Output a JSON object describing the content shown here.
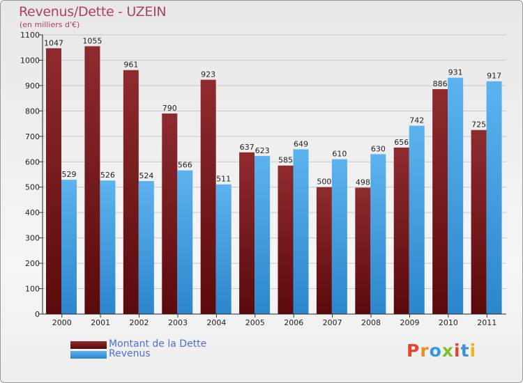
{
  "header": {
    "title": "Revenus/Dette - UZEIN",
    "subtitle": "(en milliers d'€)"
  },
  "legend": {
    "debt_label": "Montant de la Dette",
    "revenue_label": "Revenus"
  },
  "logo": {
    "text": "Proxiti",
    "colors": [
      "#e5462b",
      "#f08c24",
      "#2f9be0",
      "#7fbf2a",
      "#e5462b",
      "#3f8fd9",
      "#f0b41c"
    ]
  },
  "colors": {
    "debt": "#7a1a1e",
    "revenue": "#3a9be0",
    "title": "#b04060"
  },
  "chart_data": {
    "type": "bar",
    "categories": [
      "2000",
      "2001",
      "2002",
      "2003",
      "2004",
      "2005",
      "2006",
      "2007",
      "2008",
      "2009",
      "2010",
      "2011"
    ],
    "series": [
      {
        "name": "Montant de la Dette",
        "values": [
          1047,
          1055,
          961,
          790,
          923,
          637,
          585,
          500,
          498,
          656,
          886,
          725
        ]
      },
      {
        "name": "Revenus",
        "values": [
          529,
          526,
          524,
          566,
          511,
          623,
          649,
          610,
          630,
          742,
          931,
          917
        ]
      }
    ],
    "yticks": [
      0,
      100,
      200,
      300,
      400,
      500,
      600,
      700,
      800,
      900,
      1000,
      1100
    ],
    "ylim": [
      0,
      1100
    ],
    "grid": true,
    "legend_position": "bottom-left"
  }
}
